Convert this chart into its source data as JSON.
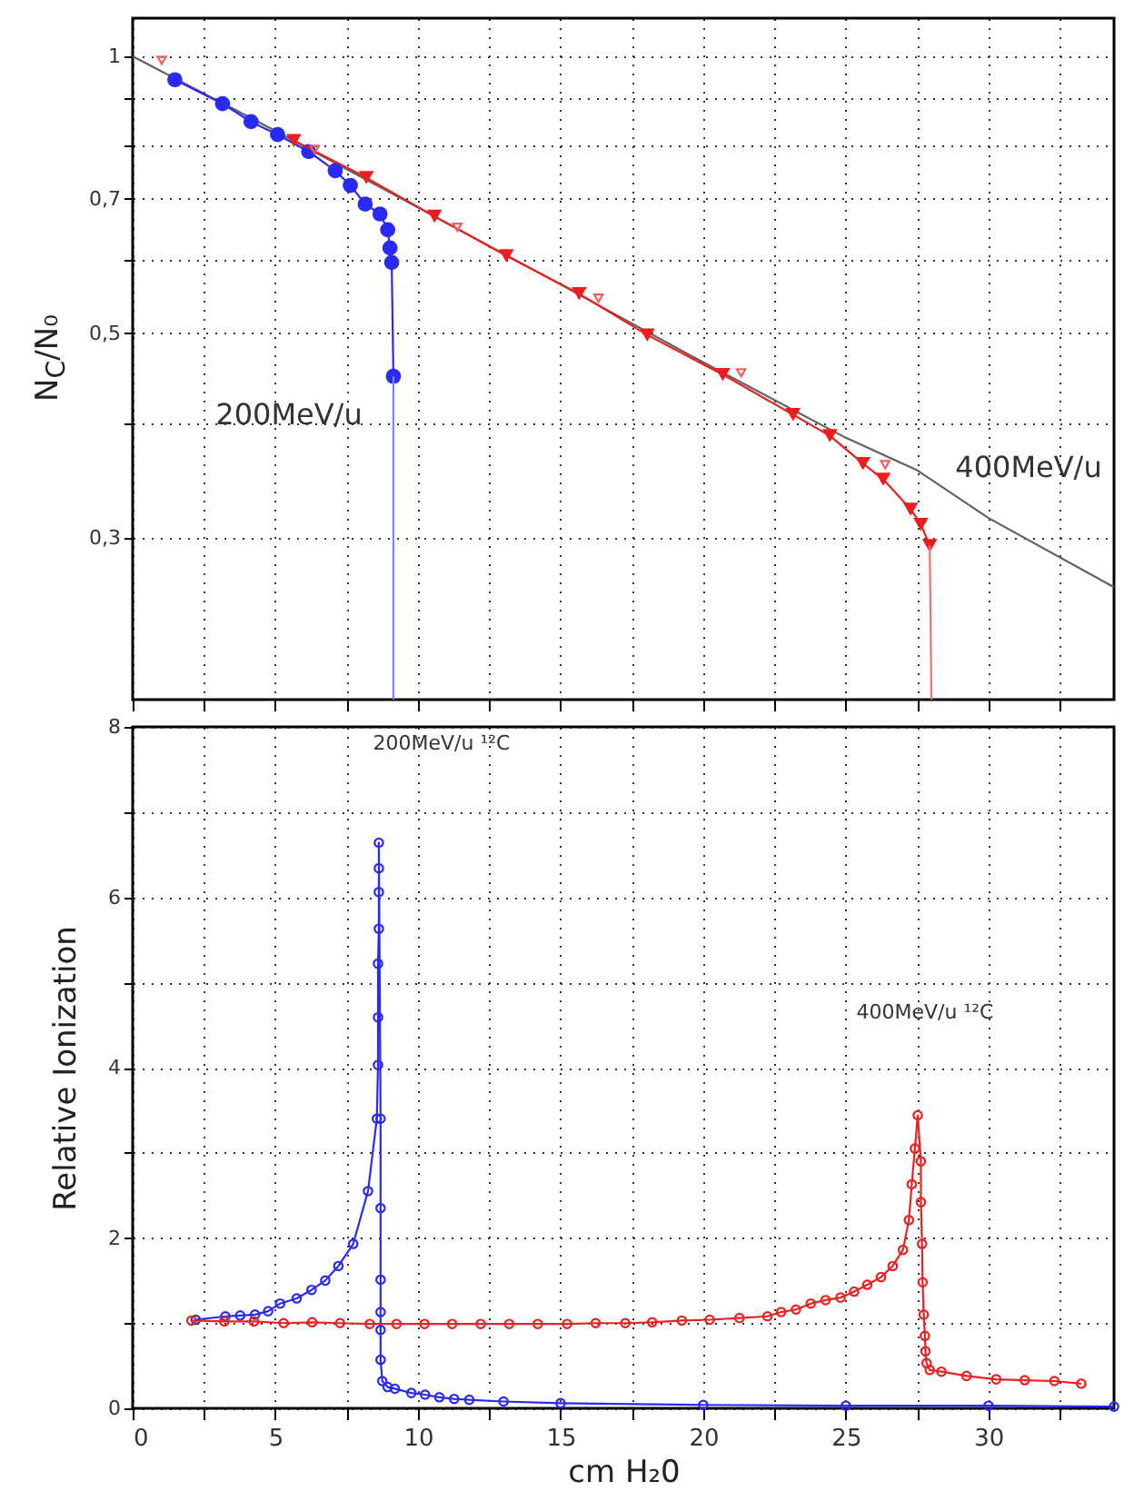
{
  "chart_data": [
    {
      "type": "line",
      "ylabel": "N$_{C}$/N₀",
      "log": "y",
      "grid": true,
      "tick_labels": "y",
      "xlim": [
        0,
        34.4
      ],
      "ylim": [
        0.2,
        1.1
      ],
      "xticks": [
        {
          "value": 0,
          "label": null
        },
        {
          "value": 2.5,
          "label": null
        },
        {
          "value": 5,
          "label": null
        },
        {
          "value": 7.5,
          "label": null
        },
        {
          "value": 10,
          "label": null
        },
        {
          "value": 12.5,
          "label": null
        },
        {
          "value": 15,
          "label": null
        },
        {
          "value": 17.5,
          "label": null
        },
        {
          "value": 20,
          "label": null
        },
        {
          "value": 22.5,
          "label": null
        },
        {
          "value": 25,
          "label": null
        },
        {
          "value": 27.5,
          "label": null
        },
        {
          "value": 30,
          "label": null
        },
        {
          "value": 32.5,
          "label": null
        }
      ],
      "yticks": [
        {
          "value": 0.3,
          "label": "0,3"
        },
        {
          "value": 0.4,
          "label": null
        },
        {
          "value": 0.5,
          "label": "0,5"
        },
        {
          "value": 0.6,
          "label": null
        },
        {
          "value": 0.7,
          "label": "0,7"
        },
        {
          "value": 0.8,
          "label": null
        },
        {
          "value": 0.9,
          "label": null
        },
        1
      ],
      "series": [
        {
          "color": "#606060",
          "marker": "none",
          "x": [
            0,
            5,
            10,
            15,
            20,
            25,
            27.5,
            30,
            34.4
          ],
          "values": [
            1.0,
            0.83,
            0.685,
            0.565,
            0.465,
            0.385,
            0.355,
            0.315,
            0.265
          ]
        },
        {
          "color": "#2a2af5",
          "marker": "circle",
          "x": [
            1.48,
            3.15,
            4.15,
            5.08,
            6.17,
            7.1,
            7.63,
            8.15,
            8.67,
            8.94,
            9.02,
            9.08,
            9.14
          ],
          "values": [
            0.943,
            0.888,
            0.849,
            0.822,
            0.788,
            0.751,
            0.724,
            0.691,
            0.674,
            0.648,
            0.619,
            0.597,
            0.449
          ]
        },
        {
          "color": "#8080f8",
          "marker": "none",
          "x": [
            9.14,
            9.14
          ],
          "values": [
            0.449,
            0.2
          ]
        },
        {
          "color": "#ee1c1c",
          "marker": "triangle",
          "x": [
            5.65,
            8.19,
            10.58,
            13.1,
            15.65,
            18.04,
            20.69,
            23.15,
            24.44,
            25.6,
            26.31,
            27.27,
            27.63,
            27.94
          ],
          "values": [
            0.81,
            0.738,
            0.67,
            0.607,
            0.552,
            0.498,
            0.451,
            0.408,
            0.387,
            0.361,
            0.347,
            0.322,
            0.31,
            0.294
          ]
        },
        {
          "color": "#f07070",
          "marker": "none",
          "x": [
            27.94,
            28.0
          ],
          "values": [
            0.294,
            0.2
          ]
        },
        {
          "type": "scatter",
          "color": "#f06060",
          "marker": "triangle",
          "x": [
            1.02,
            6.38,
            11.38,
            16.33,
            21.33,
            26.38
          ],
          "values": [
            0.99,
            0.792,
            0.652,
            0.546,
            0.453,
            0.36
          ]
        }
      ],
      "annotations": [
        "200MeV/u",
        "400MeV/u"
      ]
    },
    {
      "type": "line",
      "xlabel": "cm H₂0",
      "ylabel": "Relative Ionization",
      "grid": true,
      "xlim": [
        0,
        34.4
      ],
      "ylim": [
        0,
        8
      ],
      "xticks": [
        0,
        {
          "value": 2.5,
          "label": null
        },
        {
          "value": 5,
          "label": "5"
        },
        {
          "value": 7.5,
          "label": null
        },
        {
          "value": 10,
          "label": "10"
        },
        {
          "value": 12.5,
          "label": null
        },
        {
          "value": 15,
          "label": "15"
        },
        {
          "value": 17.5,
          "label": null
        },
        {
          "value": 20,
          "label": "20"
        },
        {
          "value": 22.5,
          "label": null
        },
        {
          "value": 25,
          "label": "25"
        },
        {
          "value": 27.5,
          "label": null
        },
        {
          "value": 30,
          "label": "30"
        },
        {
          "value": 32.5,
          "label": null
        }
      ],
      "yticks": [
        0,
        {
          "value": 1,
          "label": null
        },
        2,
        {
          "value": 3,
          "label": null
        },
        4,
        {
          "value": 5,
          "label": null
        },
        6,
        {
          "value": 7,
          "label": null
        },
        8
      ],
      "series": [
        {
          "color": "#2a2af5",
          "marker": "circle",
          "x": [
            2.21,
            3.25,
            3.77,
            4.29,
            4.75,
            5.17,
            5.75,
            6.27,
            6.75,
            7.21,
            7.73,
            8.25,
            8.56,
            8.6,
            8.6,
            8.6,
            8.63,
            8.63,
            8.63,
            8.63,
            8.69,
            8.69,
            8.69,
            8.69,
            8.69,
            8.69,
            8.75,
            8.94,
            9.19,
            9.77,
            10.25,
            10.75,
            11.27,
            11.8,
            13,
            15,
            20,
            25,
            30,
            34.4
          ],
          "values": [
            1.04,
            1.08,
            1.09,
            1.1,
            1.14,
            1.23,
            1.29,
            1.39,
            1.5,
            1.67,
            1.93,
            2.55,
            3.4,
            4.03,
            4.59,
            5.22,
            5.63,
            6.06,
            6.34,
            6.64,
            3.4,
            2.35,
            1.51,
            1.13,
            0.92,
            0.57,
            0.32,
            0.25,
            0.23,
            0.18,
            0.16,
            0.13,
            0.11,
            0.1,
            0.08,
            0.06,
            0.04,
            0.03,
            0.03,
            0.02
          ]
        },
        {
          "color": "#ee2020",
          "marker": "circle",
          "x": [
            2.06,
            3.21,
            4.25,
            5.29,
            6.29,
            7.27,
            8.31,
            9.25,
            10.23,
            11.2,
            12.2,
            13.2,
            14.2,
            15.23,
            16.23,
            17.27,
            18.21,
            19.25,
            20.23,
            21.27,
            22.25,
            22.73,
            23.25,
            23.77,
            24.29,
            24.81,
            25.29,
            25.75,
            26.23,
            26.64,
            27.0,
            27.21,
            27.31,
            27.42,
            27.52,
            27.63,
            27.63,
            27.67,
            27.69,
            27.73,
            27.77,
            27.79,
            27.83,
            27.94,
            28.35,
            29.23,
            30.27,
            31.27,
            32.31,
            33.25
          ],
          "values": [
            1.03,
            1.02,
            1.02,
            1.0,
            1.01,
            1.0,
            0.99,
            0.99,
            0.99,
            0.99,
            0.99,
            0.99,
            0.99,
            0.99,
            1.0,
            1.0,
            1.01,
            1.03,
            1.04,
            1.06,
            1.08,
            1.13,
            1.16,
            1.23,
            1.27,
            1.3,
            1.37,
            1.45,
            1.54,
            1.67,
            1.86,
            2.21,
            2.63,
            3.05,
            3.44,
            2.9,
            2.42,
            1.93,
            1.48,
            1.1,
            0.85,
            0.67,
            0.53,
            0.45,
            0.43,
            0.38,
            0.34,
            0.33,
            0.32,
            0.29
          ]
        }
      ],
      "annotations": [
        "200MeV/u ¹²C",
        "400MeV/u ¹²C"
      ]
    }
  ]
}
